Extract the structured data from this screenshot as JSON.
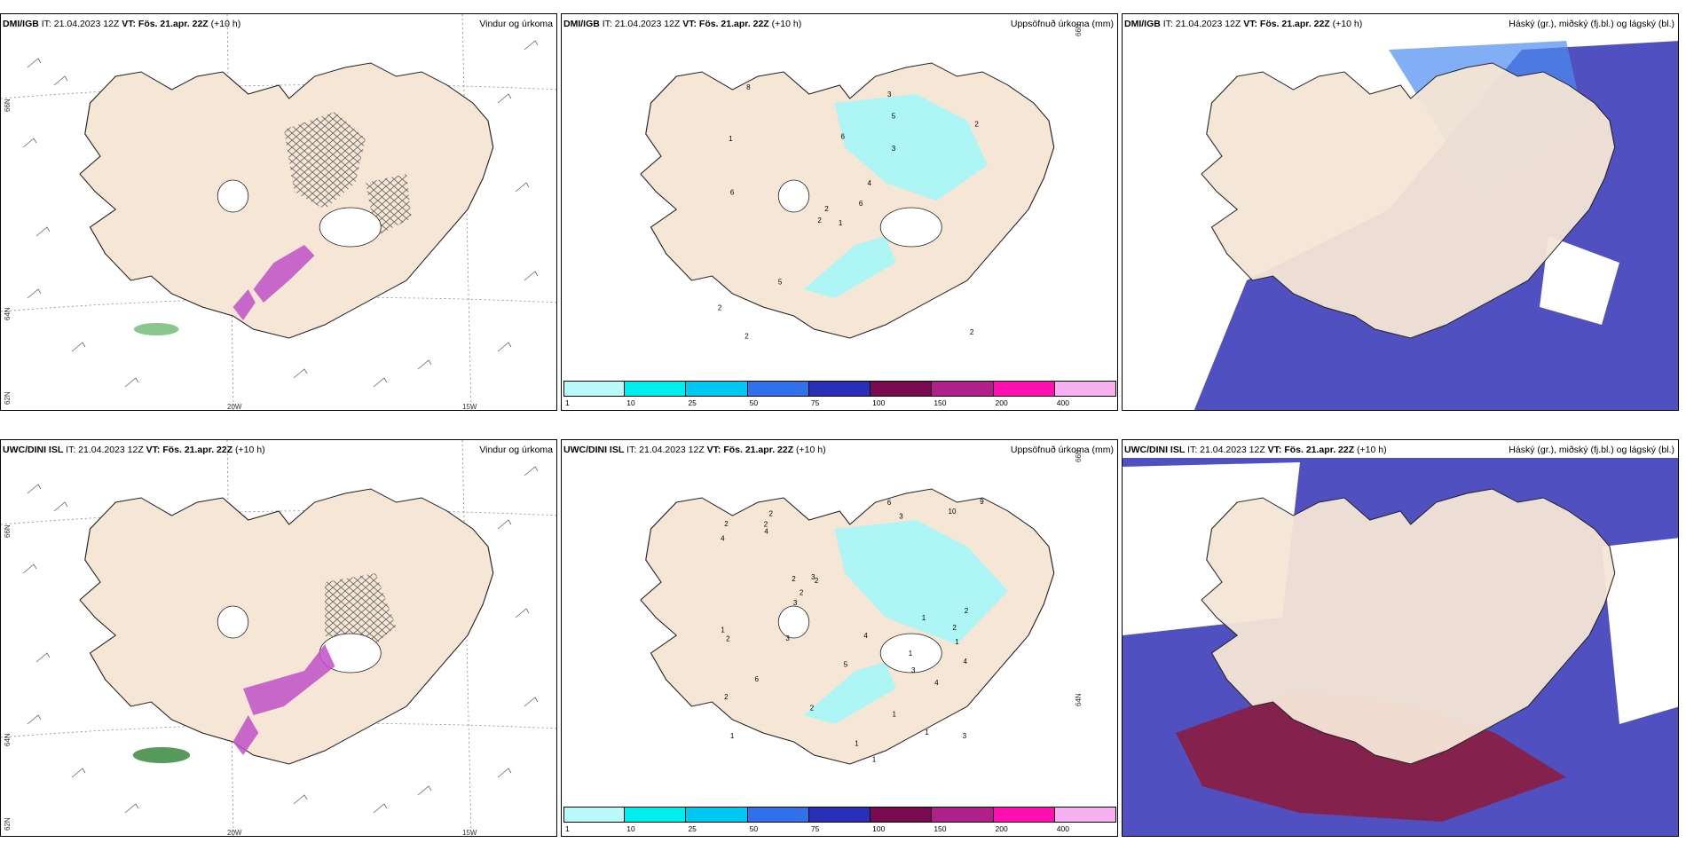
{
  "panels": [
    {
      "model": "DMI/IGB",
      "it": "IT: 21.04.2023 12Z",
      "vt": "VT: Fös. 21.apr. 22Z",
      "lead": "(+10 h)",
      "right": "Vindur og úrkoma"
    },
    {
      "model": "DMI/IGB",
      "it": "IT: 21.04.2023 12Z",
      "vt": "VT: Fös. 21.apr. 22Z",
      "lead": "(+10 h)",
      "right": "Uppsöfnuð úrkoma (mm)"
    },
    {
      "model": "DMI/IGB",
      "it": "IT: 21.04.2023 12Z",
      "vt": "VT: Fös. 21.apr. 22Z",
      "lead": "(+10 h)",
      "right": "Háský (gr.), miðský (fj.bl.) og lágský (bl.)"
    },
    {
      "model": "UWC/DINI ISL",
      "it": "IT: 21.04.2023 12Z",
      "vt": "VT: Fös. 21.apr. 22Z",
      "lead": "(+10 h)",
      "right": "Vindur og úrkoma"
    },
    {
      "model": "UWC/DINI ISL",
      "it": "IT: 21.04.2023 12Z",
      "vt": "VT: Fös. 21.apr. 22Z",
      "lead": "(+10 h)",
      "right": "Uppsöfnuð úrkoma (mm)"
    },
    {
      "model": "UWC/DINI ISL",
      "it": "IT: 21.04.2023 12Z",
      "vt": "VT: Fös. 21.apr. 22Z",
      "lead": "(+10 h)",
      "right": "Háský (gr.), miðský (fj.bl.) og lágský (bl.)"
    }
  ],
  "axis_labels": {
    "lat66": "66N",
    "lat64": "64N",
    "lat62": "62N",
    "lon20": "20W",
    "lon15": "15W"
  },
  "colorbar": {
    "colors": [
      "#b9fbfb",
      "#00eeee",
      "#00c8f0",
      "#3070e8",
      "#2830b8",
      "#7a0a50",
      "#b0208a",
      "#ff10b0",
      "#f8b0f0"
    ],
    "ticks": [
      "1",
      "10",
      "25",
      "50",
      "75",
      "100",
      "150",
      "200",
      "400"
    ]
  },
  "colors": {
    "land": "#f5e6d6",
    "precip_cyan": "#aef6f6",
    "cloud_low": "#5050c0",
    "cloud_mid": "#4b8cf0",
    "cloud_high": "#8b1c40",
    "rain_magenta": "#c050c8",
    "rain_green": "#3aa040"
  },
  "precip_values_top": [
    "1",
    "1",
    "2",
    "2",
    "4",
    "5",
    "3",
    "6",
    "5",
    "6",
    "8",
    "2",
    "6",
    "2",
    "2",
    "3",
    "2"
  ],
  "precip_values_bottom": [
    "1",
    "1",
    "1",
    "2",
    "2",
    "1",
    "2",
    "3",
    "2",
    "1",
    "4",
    "1",
    "2",
    "3",
    "2",
    "2",
    "5",
    "4",
    "3",
    "6",
    "9",
    "10",
    "3",
    "4",
    "6",
    "2",
    "3",
    "2",
    "4",
    "1",
    "1",
    "1",
    "2",
    "3",
    "2",
    "4"
  ]
}
